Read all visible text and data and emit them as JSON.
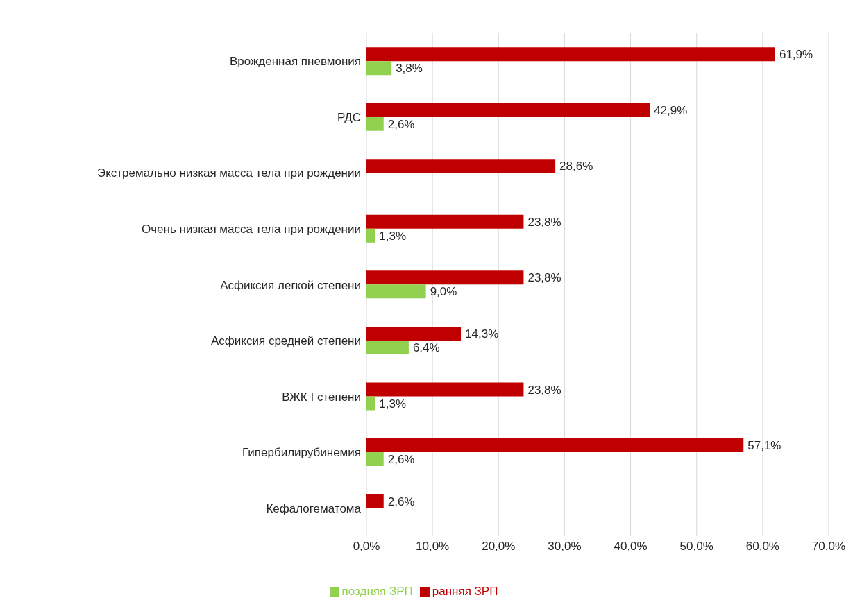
{
  "chart_data": {
    "type": "bar",
    "orientation": "horizontal",
    "categories": [
      "Врожденная пневмония",
      "РДС",
      "Экстремально низкая масса тела при рождении",
      "Очень низкая масса тела при рождении",
      "Асфиксия легкой степени",
      "Асфиксия средней степени",
      "ВЖК I степени",
      "Гипербилирубинемия",
      "Кефалогематома"
    ],
    "series": [
      {
        "name": "ранняя ЗРП",
        "color": "#c00000",
        "values": [
          61.9,
          42.9,
          28.6,
          23.8,
          23.8,
          14.3,
          23.8,
          57.1,
          2.6
        ],
        "value_labels": [
          "61,9%",
          "42,9%",
          "28,6%",
          "23,8%",
          "23,8%",
          "14,3%",
          "23,8%",
          "57,1%",
          "2,6%"
        ]
      },
      {
        "name": "поздняя ЗРП",
        "color": "#92d050",
        "values": [
          3.8,
          2.6,
          null,
          1.3,
          9.0,
          6.4,
          1.3,
          2.6,
          null
        ],
        "value_labels": [
          "3,8%",
          "2,6%",
          null,
          "1,3%",
          "9,0%",
          "6,4%",
          "1,3%",
          "2,6%",
          null
        ]
      }
    ],
    "xlim": [
      0,
      70
    ],
    "xticks": [
      {
        "value": 0,
        "label": "0,0%"
      },
      {
        "value": 10,
        "label": "10,0%"
      },
      {
        "value": 20,
        "label": "20,0%"
      },
      {
        "value": 30,
        "label": "30,0%"
      },
      {
        "value": 40,
        "label": "40,0%"
      },
      {
        "value": 50,
        "label": "50,0%"
      },
      {
        "value": 60,
        "label": "60,0%"
      },
      {
        "value": 70,
        "label": "70,0%"
      }
    ],
    "grid": "x",
    "legend": "bottom"
  }
}
